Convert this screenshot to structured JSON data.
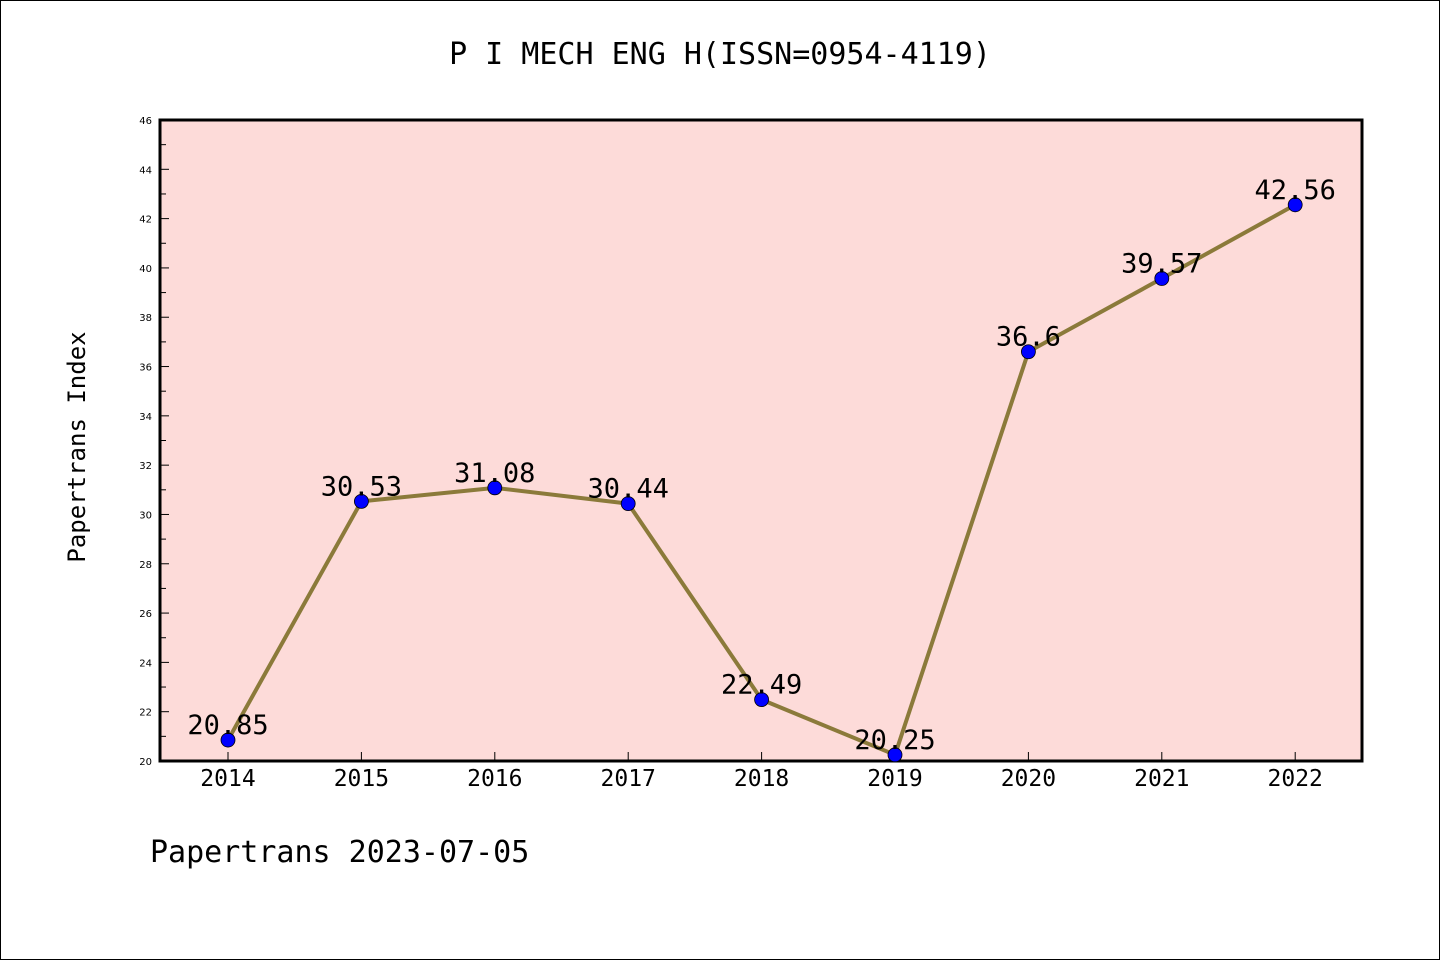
{
  "chart_data": {
    "type": "line",
    "title": "P I MECH ENG H(ISSN=0954-4119)",
    "xlabel": "",
    "ylabel": "Papertrans Index",
    "categories": [
      "2014",
      "2015",
      "2016",
      "2017",
      "2018",
      "2019",
      "2020",
      "2021",
      "2022"
    ],
    "values": [
      20.85,
      30.53,
      31.08,
      30.44,
      22.49,
      20.25,
      36.6,
      39.57,
      42.56
    ],
    "value_labels": [
      "20.85",
      "30.53",
      "31.08",
      "30.44",
      "22.49",
      "20.25",
      "36.6",
      "39.57",
      "42.56"
    ],
    "ylim": [
      20,
      46
    ],
    "yticks": [
      20,
      22,
      24,
      26,
      28,
      30,
      32,
      34,
      36,
      38,
      40,
      42,
      44,
      46
    ],
    "grid": false,
    "colors": {
      "plot_background": "#fddbd9",
      "line": "#8b7a3a",
      "marker": "#0000ff"
    }
  },
  "footer": "Papertrans 2023-07-05"
}
